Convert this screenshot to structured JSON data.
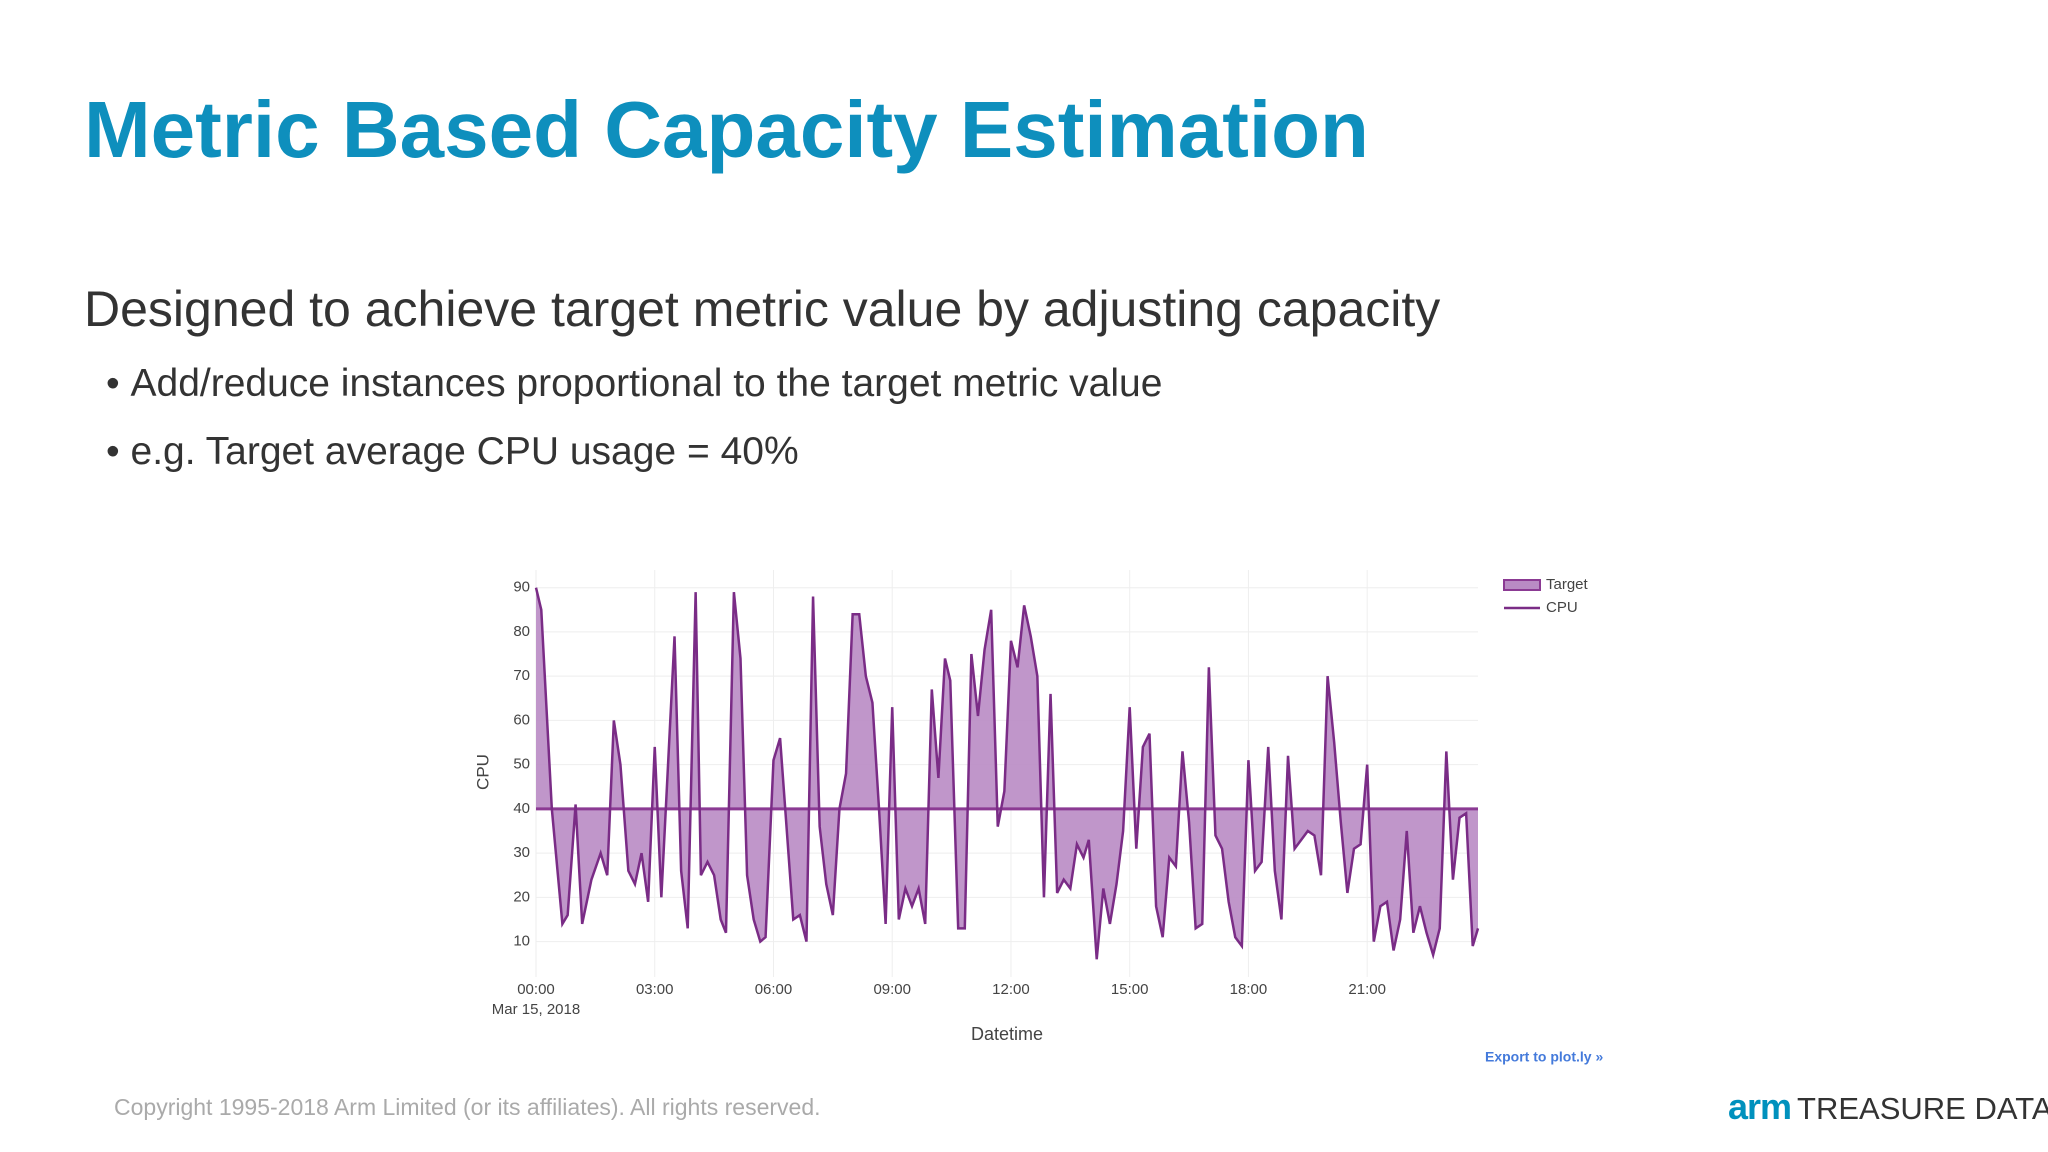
{
  "slide": {
    "title": "Metric Based Capacity Estimation",
    "subtitle": "Designed to achieve target metric value by adjusting capacity",
    "bullets": [
      "Add/reduce instances proportional to the target metric value",
      "e.g. Target average CPU usage = 40%"
    ],
    "copyright": "Copyright 1995-2018 Arm Limited (or its affiliates). All rights reserved.",
    "logo": {
      "brand": "arm",
      "product": "TREASURE DATA"
    }
  },
  "chart_data": {
    "type": "line",
    "x_label": "Datetime",
    "y_label": "CPU",
    "x_date_label": "Mar 15, 2018",
    "export_link": "Export to plot.ly »",
    "x": [
      0,
      8,
      24,
      40,
      48,
      60,
      70,
      84,
      98,
      108,
      118,
      128,
      140,
      150,
      160,
      170,
      180,
      190,
      210,
      220,
      230,
      242,
      250,
      260,
      270,
      280,
      288,
      300,
      310,
      320,
      330,
      340,
      348,
      360,
      370,
      390,
      400,
      410,
      420,
      430,
      440,
      450,
      460,
      470,
      480,
      490,
      500,
      510,
      520,
      530,
      540,
      550,
      560,
      570,
      580,
      590,
      600,
      610,
      620,
      628,
      640,
      650,
      660,
      670,
      680,
      690,
      700,
      710,
      720,
      730,
      740,
      750,
      760,
      770,
      780,
      790,
      800,
      810,
      820,
      830,
      838,
      850,
      860,
      870,
      880,
      890,
      900,
      910,
      920,
      930,
      940,
      950,
      960,
      970,
      980,
      990,
      1000,
      1010,
      1020,
      1030,
      1040,
      1050,
      1060,
      1070,
      1080,
      1090,
      1100,
      1110,
      1120,
      1130,
      1140,
      1150,
      1160,
      1170,
      1180,
      1190,
      1200,
      1210,
      1220,
      1230,
      1240,
      1250,
      1260,
      1270,
      1280,
      1290,
      1300,
      1310,
      1320,
      1330,
      1340,
      1350,
      1360,
      1370,
      1380,
      1390,
      1400,
      1410,
      1420,
      1428
    ],
    "series": [
      {
        "name": "Target",
        "color": "#8b3a93",
        "fill": "#b98bc4",
        "x": [
          0,
          1428
        ],
        "values": [
          40,
          40
        ]
      },
      {
        "name": "CPU",
        "color": "#7a2c86",
        "values": [
          90,
          85,
          40,
          14,
          16,
          41,
          14,
          24,
          30,
          25,
          60,
          50,
          26,
          23,
          30,
          19,
          54,
          20,
          79,
          26,
          13,
          89,
          25,
          28,
          25,
          15,
          12,
          89,
          74,
          25,
          15,
          10,
          11,
          51,
          56,
          15,
          16,
          10,
          88,
          36,
          23,
          16,
          40,
          48,
          84,
          84,
          70,
          64,
          40,
          14,
          63,
          15,
          22,
          18,
          22,
          14,
          67,
          47,
          74,
          69,
          13,
          13,
          75,
          61,
          76,
          85,
          36,
          44,
          78,
          72,
          86,
          79,
          70,
          20,
          66,
          21,
          24,
          22,
          32,
          29,
          33,
          6,
          22,
          14,
          23,
          35,
          63,
          31,
          54,
          57,
          18,
          11,
          29,
          27,
          53,
          37,
          13,
          14,
          72,
          34,
          31,
          19,
          11,
          9,
          51,
          26,
          28,
          54,
          26,
          15,
          52,
          31,
          33,
          35,
          34,
          25,
          70,
          55,
          37,
          21,
          31,
          32,
          50,
          10,
          18,
          19,
          8,
          15,
          35,
          12,
          18,
          12,
          7,
          13,
          53,
          24,
          38,
          39,
          9,
          13
        ]
      }
    ],
    "xlim": [
      0,
      1428
    ],
    "xticks": [
      {
        "value": 0,
        "label": "00:00"
      },
      {
        "value": 180,
        "label": "03:00"
      },
      {
        "value": 360,
        "label": "06:00"
      },
      {
        "value": 540,
        "label": "09:00"
      },
      {
        "value": 720,
        "label": "12:00"
      },
      {
        "value": 900,
        "label": "15:00"
      },
      {
        "value": 1080,
        "label": "18:00"
      },
      {
        "value": 1260,
        "label": "21:00"
      }
    ],
    "ylim": [
      2,
      94
    ],
    "yticks": [
      10,
      20,
      30,
      40,
      50,
      60,
      70,
      80,
      90
    ],
    "grid": true,
    "legend": "top-right"
  }
}
